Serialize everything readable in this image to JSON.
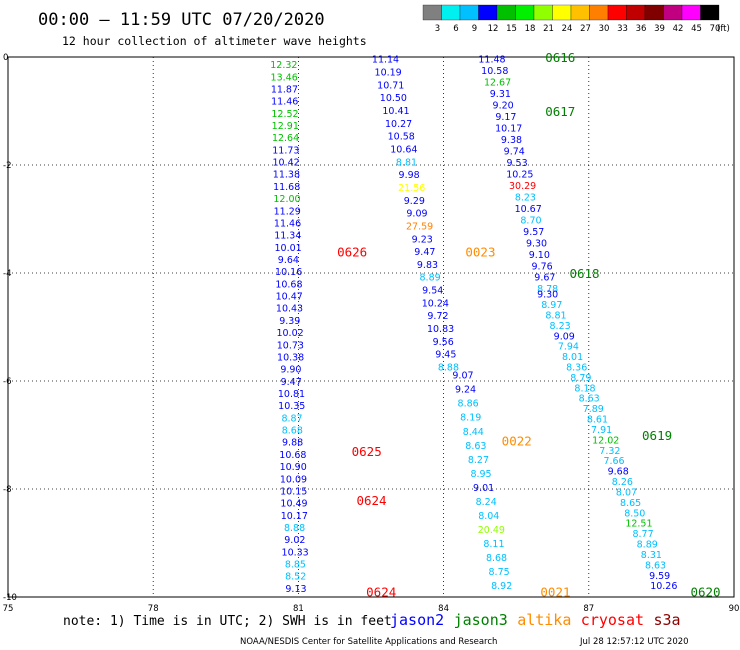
{
  "title": "00:00 – 11:59 UTC 07/20/2020",
  "subtitle": "12 hour collection of altimeter wave heights",
  "footer": {
    "note": "note: 1) Time is in UTC; 2) SWH is in feet",
    "credit": "NOAA/NESDIS Center for Satellite Applications and Research",
    "timestamp": "Jul 28 12:57:12 UTC 2020"
  },
  "colorbar": {
    "unit": "(ft)",
    "ticks": [
      "3",
      "6",
      "9",
      "12",
      "15",
      "18",
      "21",
      "24",
      "27",
      "30",
      "33",
      "36",
      "39",
      "42",
      "45",
      "70"
    ],
    "colors": [
      "#808080",
      "#00f0f0",
      "#00c0ff",
      "#0000ff",
      "#00c000",
      "#00f000",
      "#90ff00",
      "#ffff00",
      "#ffc000",
      "#ff8000",
      "#ff0000",
      "#c00000",
      "#800000",
      "#c00080",
      "#ff00ff",
      "#000000"
    ]
  },
  "satellites": [
    {
      "name": "jason2",
      "color": "#0000ff"
    },
    {
      "name": "jason3",
      "color": "#008000"
    },
    {
      "name": "altika",
      "color": "#ff8c00"
    },
    {
      "name": "cryosat",
      "color": "#ff0000"
    },
    {
      "name": "s3a",
      "color": "#8b0000"
    }
  ],
  "chart_data": {
    "type": "scatter",
    "description_units": "lon (deg E), lat (deg N), SWH (ft)",
    "xlim": [
      75,
      90
    ],
    "ylim": [
      -10,
      0
    ],
    "xticks": [
      75,
      78,
      81,
      84,
      87,
      90
    ],
    "yticks": [
      0,
      -2,
      -4,
      -6,
      -8,
      -10
    ],
    "grid": true,
    "tracks": [
      {
        "satellite": "jason2",
        "start": [
          80.7,
          -0.15
        ],
        "end": [
          80.95,
          -9.85
        ],
        "values": [
          "12.32",
          "13.46",
          "11.87",
          "11.46",
          "12.52",
          "12.91",
          "12.64",
          "11.73",
          "10.42",
          "11.38",
          "11.68",
          "12.00",
          "11.29",
          "11.46",
          "11.34",
          "10.01",
          "9.64",
          "10.16",
          "10.68",
          "10.47",
          "10.43",
          "9.39",
          "10.02",
          "10.73",
          "10.38",
          "9.90",
          "9.47",
          "10.81",
          "10.35",
          "8.87",
          "8.68",
          "9.88",
          "10.68",
          "10.90",
          "10.09",
          "10.15",
          "10.49",
          "10.17",
          "8.88",
          "9.02",
          "10.33",
          "8.85",
          "8.52",
          "9.13"
        ]
      },
      {
        "satellite": "jason2",
        "start": [
          82.8,
          -0.05
        ],
        "end": [
          84.1,
          -5.75
        ],
        "values": [
          "11.14",
          "10.19",
          "10.71",
          "10.50",
          "10.41",
          "10.27",
          "10.58",
          "10.64",
          "8.81",
          "9.98",
          "21.56",
          "9.29",
          "9.09",
          "27.59",
          "9.23",
          "9.47",
          "9.83",
          "8.89",
          "9.54",
          "10.24",
          "9.72",
          "10.83",
          "9.56",
          "9.45",
          "8.88"
        ]
      },
      {
        "satellite": "jason2",
        "start": [
          84.4,
          -5.9
        ],
        "end": [
          85.2,
          -9.8
        ],
        "values": [
          "9.07",
          "9.24",
          "8.86",
          "8.19",
          "8.44",
          "8.63",
          "8.27",
          "8.95",
          "9.01",
          "8.24",
          "8.04",
          "20.49",
          "8.11",
          "8.68",
          "8.75",
          "8.92"
        ]
      },
      {
        "satellite": "jason2",
        "start": [
          85.0,
          -0.05
        ],
        "end": [
          86.15,
          -4.3
        ],
        "values": [
          "11.48",
          "10.58",
          "12.67",
          "9.31",
          "9.20",
          "9.17",
          "10.17",
          "9.38",
          "9.74",
          "9.53",
          "10.25",
          "30.29",
          "8.23",
          "10.67",
          "8.70",
          "9.57",
          "9.30",
          "9.10",
          "9.76",
          "9.67",
          "8.78"
        ]
      },
      {
        "satellite": "jason2",
        "start": [
          86.15,
          -4.4
        ],
        "end": [
          88.55,
          -9.8
        ],
        "values": [
          "9.30",
          "8.97",
          "8.81",
          "8.23",
          "9.09",
          "7.94",
          "8.01",
          "8.36",
          "8.79",
          "8.18",
          "8.63",
          "7.89",
          "8.61",
          "7.91",
          "12.02",
          "7.32",
          "7.66",
          "9.68",
          "8.26",
          "8.07",
          "8.65",
          "8.50",
          "12.51",
          "8.77",
          "8.89",
          "8.31",
          "8.63",
          "9.59",
          "10.26"
        ]
      }
    ],
    "track_labels": [
      {
        "text": "0616",
        "lon": 86.1,
        "lat": 0.0,
        "satellite": "jason3"
      },
      {
        "text": "0617",
        "lon": 86.1,
        "lat": -1.0,
        "satellite": "jason3"
      },
      {
        "text": "0618",
        "lon": 86.6,
        "lat": -4.0,
        "satellite": "jason3"
      },
      {
        "text": "0619",
        "lon": 88.1,
        "lat": -7.0,
        "satellite": "jason3"
      },
      {
        "text": "0620",
        "lon": 89.1,
        "lat": -9.9,
        "satellite": "jason3"
      },
      {
        "text": "0626",
        "lon": 81.8,
        "lat": -3.6,
        "satellite": "cryosat"
      },
      {
        "text": "0625",
        "lon": 82.1,
        "lat": -7.3,
        "satellite": "cryosat"
      },
      {
        "text": "0624",
        "lon": 82.2,
        "lat": -8.2,
        "satellite": "cryosat"
      },
      {
        "text": "0624",
        "lon": 82.4,
        "lat": -9.9,
        "satellite": "cryosat"
      },
      {
        "text": "0023",
        "lon": 84.45,
        "lat": -3.6,
        "satellite": "altika"
      },
      {
        "text": "0022",
        "lon": 85.2,
        "lat": -7.1,
        "satellite": "altika"
      },
      {
        "text": "0021",
        "lon": 86.0,
        "lat": -9.9,
        "satellite": "altika"
      }
    ]
  }
}
